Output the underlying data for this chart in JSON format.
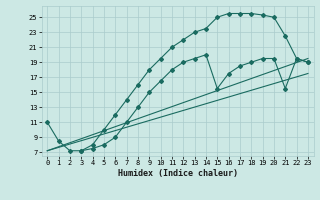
{
  "xlabel": "Humidex (Indice chaleur)",
  "bg_color": "#cce8e4",
  "grid_color": "#aacccc",
  "line_color": "#1a6b60",
  "xlim": [
    -0.5,
    23.5
  ],
  "ylim": [
    6.5,
    26.5
  ],
  "xtick_labels": [
    "0",
    "1",
    "2",
    "3",
    "4",
    "5",
    "6",
    "7",
    "8",
    "9",
    "10",
    "11",
    "12",
    "13",
    "14",
    "15",
    "16",
    "17",
    "18",
    "19",
    "20",
    "21",
    "22",
    "23"
  ],
  "xtick_vals": [
    0,
    1,
    2,
    3,
    4,
    5,
    6,
    7,
    8,
    9,
    10,
    11,
    12,
    13,
    14,
    15,
    16,
    17,
    18,
    19,
    20,
    21,
    22,
    23
  ],
  "ytick_vals": [
    7,
    9,
    11,
    13,
    15,
    17,
    19,
    21,
    23,
    25
  ],
  "ytick_labels": [
    "7",
    "9",
    "11",
    "13",
    "15",
    "17",
    "19",
    "21",
    "23",
    "25"
  ],
  "curve1_x": [
    0,
    1,
    2,
    3,
    4,
    5,
    6,
    7,
    8,
    9,
    10,
    11,
    12,
    13,
    14,
    15,
    16,
    17,
    18,
    19,
    20,
    21,
    22,
    23
  ],
  "curve1_y": [
    11,
    8.5,
    7.2,
    7.2,
    8,
    10,
    12,
    14,
    16,
    18,
    19.5,
    21,
    22,
    23,
    23.5,
    25,
    25.5,
    25.5,
    25.5,
    25.3,
    25,
    22.5,
    19.5,
    19
  ],
  "curve2_x": [
    3,
    4,
    5,
    6,
    7,
    8,
    9,
    10,
    11,
    12,
    13,
    14,
    15,
    16,
    17,
    18,
    19,
    20,
    21,
    22,
    23
  ],
  "curve2_y": [
    7.2,
    7.5,
    8,
    9,
    11,
    13,
    15,
    16.5,
    18,
    19,
    19.5,
    20,
    15.5,
    17.5,
    18.5,
    19,
    19.5,
    19.5,
    15.5,
    19.5,
    19
  ],
  "line1_x": [
    0,
    23
  ],
  "line1_y": [
    7.2,
    19.5
  ],
  "line2_x": [
    0,
    23
  ],
  "line2_y": [
    7.2,
    17.5
  ]
}
